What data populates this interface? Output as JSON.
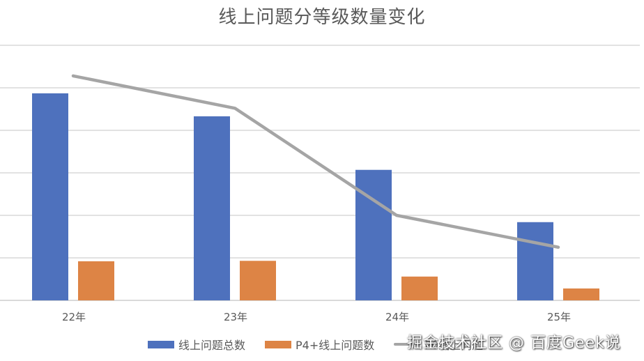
{
  "title": "线上问题分等级数量变化",
  "colors": {
    "series_total": "#4e71bd",
    "series_p4": "#dd8445",
    "series_p0": "#a5a5a5",
    "grid": "#d9d9d9",
    "text": "#595959"
  },
  "x_labels": [
    "22年",
    "23年",
    "24年",
    "25年"
  ],
  "legend": [
    {
      "label": "线上问题总数",
      "type": "bar"
    },
    {
      "label": "P4+线上问题数",
      "type": "bar"
    },
    {
      "label": "P0线上问题",
      "type": "line"
    }
  ],
  "watermark": "掘金技术社区 @ 百度Geek说",
  "chart_data": {
    "type": "bar",
    "title": "线上问题分等级数量变化",
    "xlabel": "",
    "ylabel": "",
    "categories": [
      "22年",
      "23年",
      "24年",
      "25年"
    ],
    "series": [
      {
        "name": "线上问题总数",
        "type": "bar",
        "values": [
          4.87,
          4.33,
          3.07,
          1.84
        ]
      },
      {
        "name": "P4+线上问题数",
        "type": "bar",
        "values": [
          0.92,
          0.93,
          0.56,
          0.28
        ]
      },
      {
        "name": "P0线上问题",
        "type": "line",
        "values": [
          5.28,
          4.52,
          2.0,
          1.25
        ]
      }
    ],
    "ylim": [
      0,
      6
    ],
    "y_ticks_visible": false,
    "grid": true,
    "legend_position": "bottom",
    "note": "No y-axis tick labels shown; values in gridline units (6 equal intervals)."
  }
}
